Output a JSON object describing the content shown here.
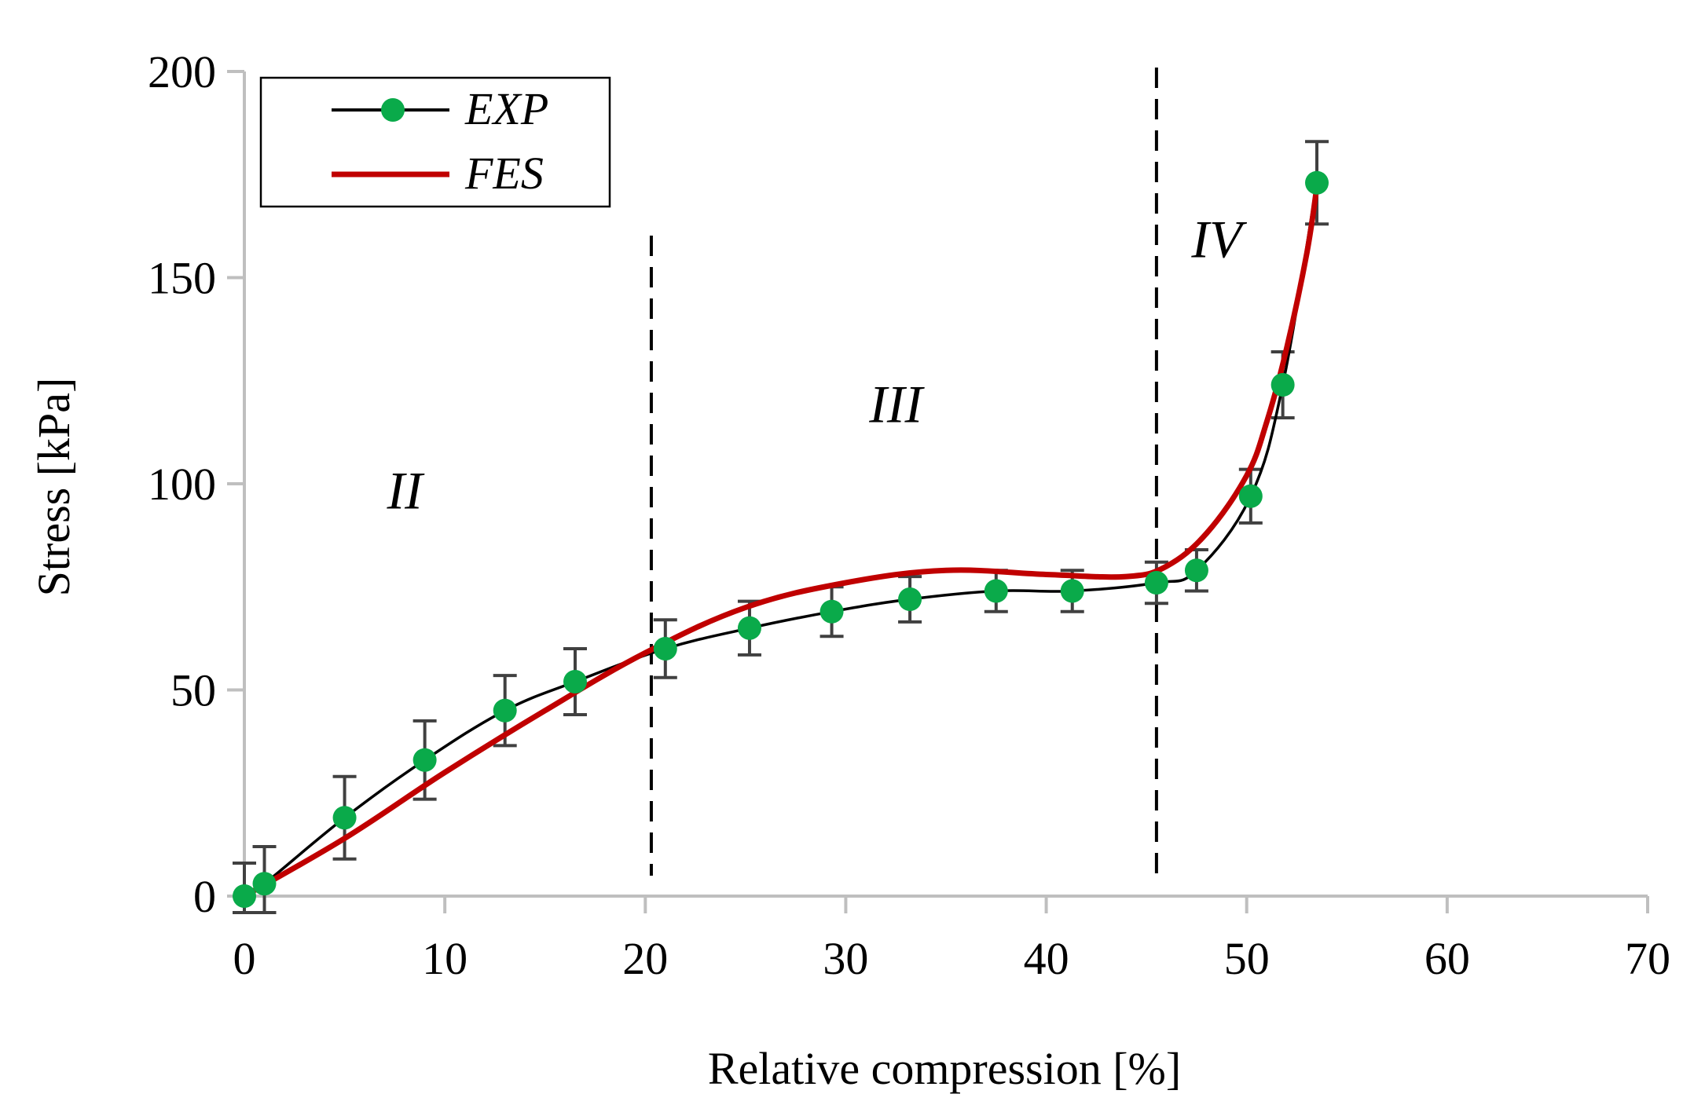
{
  "chart_data": {
    "type": "line",
    "title": "",
    "xlabel": "Relative compression [%]",
    "ylabel": "Stress [kPa]",
    "xlim": [
      0,
      70
    ],
    "ylim": [
      0,
      200
    ],
    "xticks": [
      0,
      10,
      20,
      30,
      40,
      50,
      60,
      70
    ],
    "yticks": [
      0,
      50,
      100,
      150,
      200
    ],
    "grid": false,
    "legend_position": "top-left",
    "series": [
      {
        "name": "EXP",
        "color": "#000000",
        "marker_color": "#0aaa4a",
        "x": [
          0,
          1,
          5,
          9,
          13,
          16.5,
          21,
          25.2,
          29.3,
          33.2,
          37.5,
          41.3,
          45.5,
          47.5,
          50.2,
          51.8,
          53.5
        ],
        "y": [
          0,
          3,
          19,
          33,
          45,
          52,
          60,
          65,
          69,
          72,
          74,
          74,
          76,
          79,
          97,
          124,
          173
        ],
        "error": [
          8,
          9,
          10,
          9.5,
          8.5,
          8,
          7,
          6.5,
          6,
          5.5,
          5,
          5,
          5,
          5,
          6.5,
          8,
          10
        ]
      },
      {
        "name": "FES",
        "color": "#c00000",
        "x": [
          0,
          5,
          10,
          15,
          20,
          25,
          30,
          35,
          40,
          44,
          46,
          48,
          50,
          51,
          52,
          53,
          53.5
        ],
        "y": [
          0,
          14,
          30,
          45,
          59,
          70,
          76,
          79,
          78,
          77.5,
          80,
          88,
          102,
          115,
          133,
          156,
          172
        ]
      }
    ],
    "region_dividers": [
      20.3,
      45.5
    ],
    "region_labels": [
      {
        "text": "II",
        "x": 8,
        "y": 94
      },
      {
        "text": "III",
        "x": 32.5,
        "y": 115
      },
      {
        "text": "IV",
        "x": 48.5,
        "y": 155
      }
    ]
  }
}
